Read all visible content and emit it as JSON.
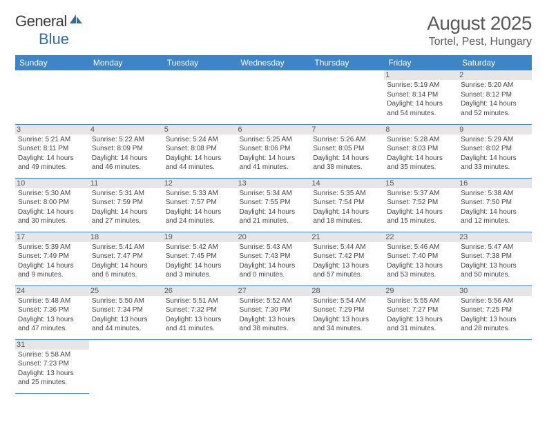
{
  "logo": {
    "text1": "General",
    "text2": "Blue"
  },
  "title": "August 2025",
  "location": "Tortel, Pest, Hungary",
  "colors": {
    "header_bg": "#3d85c6",
    "header_text": "#ffffff",
    "daynum_bg": "#e6e6e6",
    "cell_border": "#3d85c6",
    "title_color": "#5a5a5a",
    "text_color": "#444444"
  },
  "dow": [
    "Sunday",
    "Monday",
    "Tuesday",
    "Wednesday",
    "Thursday",
    "Friday",
    "Saturday"
  ],
  "weeks": [
    [
      null,
      null,
      null,
      null,
      null,
      {
        "n": "1",
        "sunrise": "5:19 AM",
        "sunset": "8:14 PM",
        "daylight": "14 hours and 54 minutes."
      },
      {
        "n": "2",
        "sunrise": "5:20 AM",
        "sunset": "8:12 PM",
        "daylight": "14 hours and 52 minutes."
      }
    ],
    [
      {
        "n": "3",
        "sunrise": "5:21 AM",
        "sunset": "8:11 PM",
        "daylight": "14 hours and 49 minutes."
      },
      {
        "n": "4",
        "sunrise": "5:22 AM",
        "sunset": "8:09 PM",
        "daylight": "14 hours and 46 minutes."
      },
      {
        "n": "5",
        "sunrise": "5:24 AM",
        "sunset": "8:08 PM",
        "daylight": "14 hours and 44 minutes."
      },
      {
        "n": "6",
        "sunrise": "5:25 AM",
        "sunset": "8:06 PM",
        "daylight": "14 hours and 41 minutes."
      },
      {
        "n": "7",
        "sunrise": "5:26 AM",
        "sunset": "8:05 PM",
        "daylight": "14 hours and 38 minutes."
      },
      {
        "n": "8",
        "sunrise": "5:28 AM",
        "sunset": "8:03 PM",
        "daylight": "14 hours and 35 minutes."
      },
      {
        "n": "9",
        "sunrise": "5:29 AM",
        "sunset": "8:02 PM",
        "daylight": "14 hours and 33 minutes."
      }
    ],
    [
      {
        "n": "10",
        "sunrise": "5:30 AM",
        "sunset": "8:00 PM",
        "daylight": "14 hours and 30 minutes."
      },
      {
        "n": "11",
        "sunrise": "5:31 AM",
        "sunset": "7:59 PM",
        "daylight": "14 hours and 27 minutes."
      },
      {
        "n": "12",
        "sunrise": "5:33 AM",
        "sunset": "7:57 PM",
        "daylight": "14 hours and 24 minutes."
      },
      {
        "n": "13",
        "sunrise": "5:34 AM",
        "sunset": "7:55 PM",
        "daylight": "14 hours and 21 minutes."
      },
      {
        "n": "14",
        "sunrise": "5:35 AM",
        "sunset": "7:54 PM",
        "daylight": "14 hours and 18 minutes."
      },
      {
        "n": "15",
        "sunrise": "5:37 AM",
        "sunset": "7:52 PM",
        "daylight": "14 hours and 15 minutes."
      },
      {
        "n": "16",
        "sunrise": "5:38 AM",
        "sunset": "7:50 PM",
        "daylight": "14 hours and 12 minutes."
      }
    ],
    [
      {
        "n": "17",
        "sunrise": "5:39 AM",
        "sunset": "7:49 PM",
        "daylight": "14 hours and 9 minutes."
      },
      {
        "n": "18",
        "sunrise": "5:41 AM",
        "sunset": "7:47 PM",
        "daylight": "14 hours and 6 minutes."
      },
      {
        "n": "19",
        "sunrise": "5:42 AM",
        "sunset": "7:45 PM",
        "daylight": "14 hours and 3 minutes."
      },
      {
        "n": "20",
        "sunrise": "5:43 AM",
        "sunset": "7:43 PM",
        "daylight": "14 hours and 0 minutes."
      },
      {
        "n": "21",
        "sunrise": "5:44 AM",
        "sunset": "7:42 PM",
        "daylight": "13 hours and 57 minutes."
      },
      {
        "n": "22",
        "sunrise": "5:46 AM",
        "sunset": "7:40 PM",
        "daylight": "13 hours and 53 minutes."
      },
      {
        "n": "23",
        "sunrise": "5:47 AM",
        "sunset": "7:38 PM",
        "daylight": "13 hours and 50 minutes."
      }
    ],
    [
      {
        "n": "24",
        "sunrise": "5:48 AM",
        "sunset": "7:36 PM",
        "daylight": "13 hours and 47 minutes."
      },
      {
        "n": "25",
        "sunrise": "5:50 AM",
        "sunset": "7:34 PM",
        "daylight": "13 hours and 44 minutes."
      },
      {
        "n": "26",
        "sunrise": "5:51 AM",
        "sunset": "7:32 PM",
        "daylight": "13 hours and 41 minutes."
      },
      {
        "n": "27",
        "sunrise": "5:52 AM",
        "sunset": "7:30 PM",
        "daylight": "13 hours and 38 minutes."
      },
      {
        "n": "28",
        "sunrise": "5:54 AM",
        "sunset": "7:29 PM",
        "daylight": "13 hours and 34 minutes."
      },
      {
        "n": "29",
        "sunrise": "5:55 AM",
        "sunset": "7:27 PM",
        "daylight": "13 hours and 31 minutes."
      },
      {
        "n": "30",
        "sunrise": "5:56 AM",
        "sunset": "7:25 PM",
        "daylight": "13 hours and 28 minutes."
      }
    ],
    [
      {
        "n": "31",
        "sunrise": "5:58 AM",
        "sunset": "7:23 PM",
        "daylight": "13 hours and 25 minutes."
      },
      null,
      null,
      null,
      null,
      null,
      null
    ]
  ]
}
